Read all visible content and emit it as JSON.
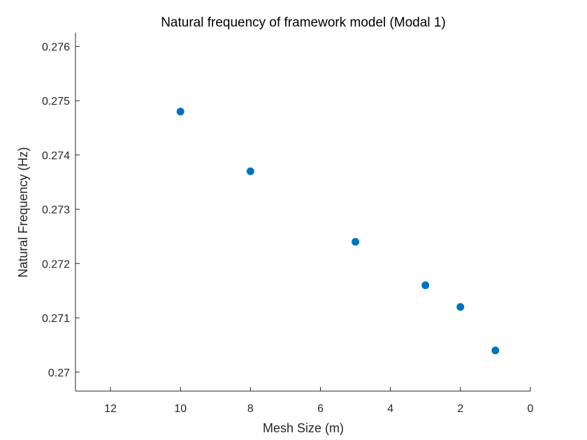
{
  "chart_data": {
    "type": "scatter",
    "title": "Natural frequency of framework model (Modal 1)",
    "xlabel": "Mesh Size (m)",
    "ylabel": "Natural Frequency (Hz)",
    "x_reversed": true,
    "xlim": [
      0,
      13
    ],
    "ylim": [
      0.26965,
      0.27625
    ],
    "x_ticks": [
      12,
      10,
      8,
      6,
      4,
      2,
      0
    ],
    "x_tick_labels": [
      "12",
      "10",
      "8",
      "6",
      "4",
      "2",
      "0"
    ],
    "y_ticks": [
      0.27,
      0.271,
      0.272,
      0.273,
      0.274,
      0.275,
      0.276
    ],
    "y_tick_labels": [
      "0.27",
      "0.271",
      "0.272",
      "0.273",
      "0.274",
      "0.275",
      "0.276"
    ],
    "grid": false,
    "marker_color": "#0072BD",
    "series": [
      {
        "x": [
          10,
          8,
          5,
          3,
          2,
          1
        ],
        "y": [
          0.2748,
          0.2737,
          0.2724,
          0.2716,
          0.2712,
          0.2704
        ]
      }
    ]
  }
}
